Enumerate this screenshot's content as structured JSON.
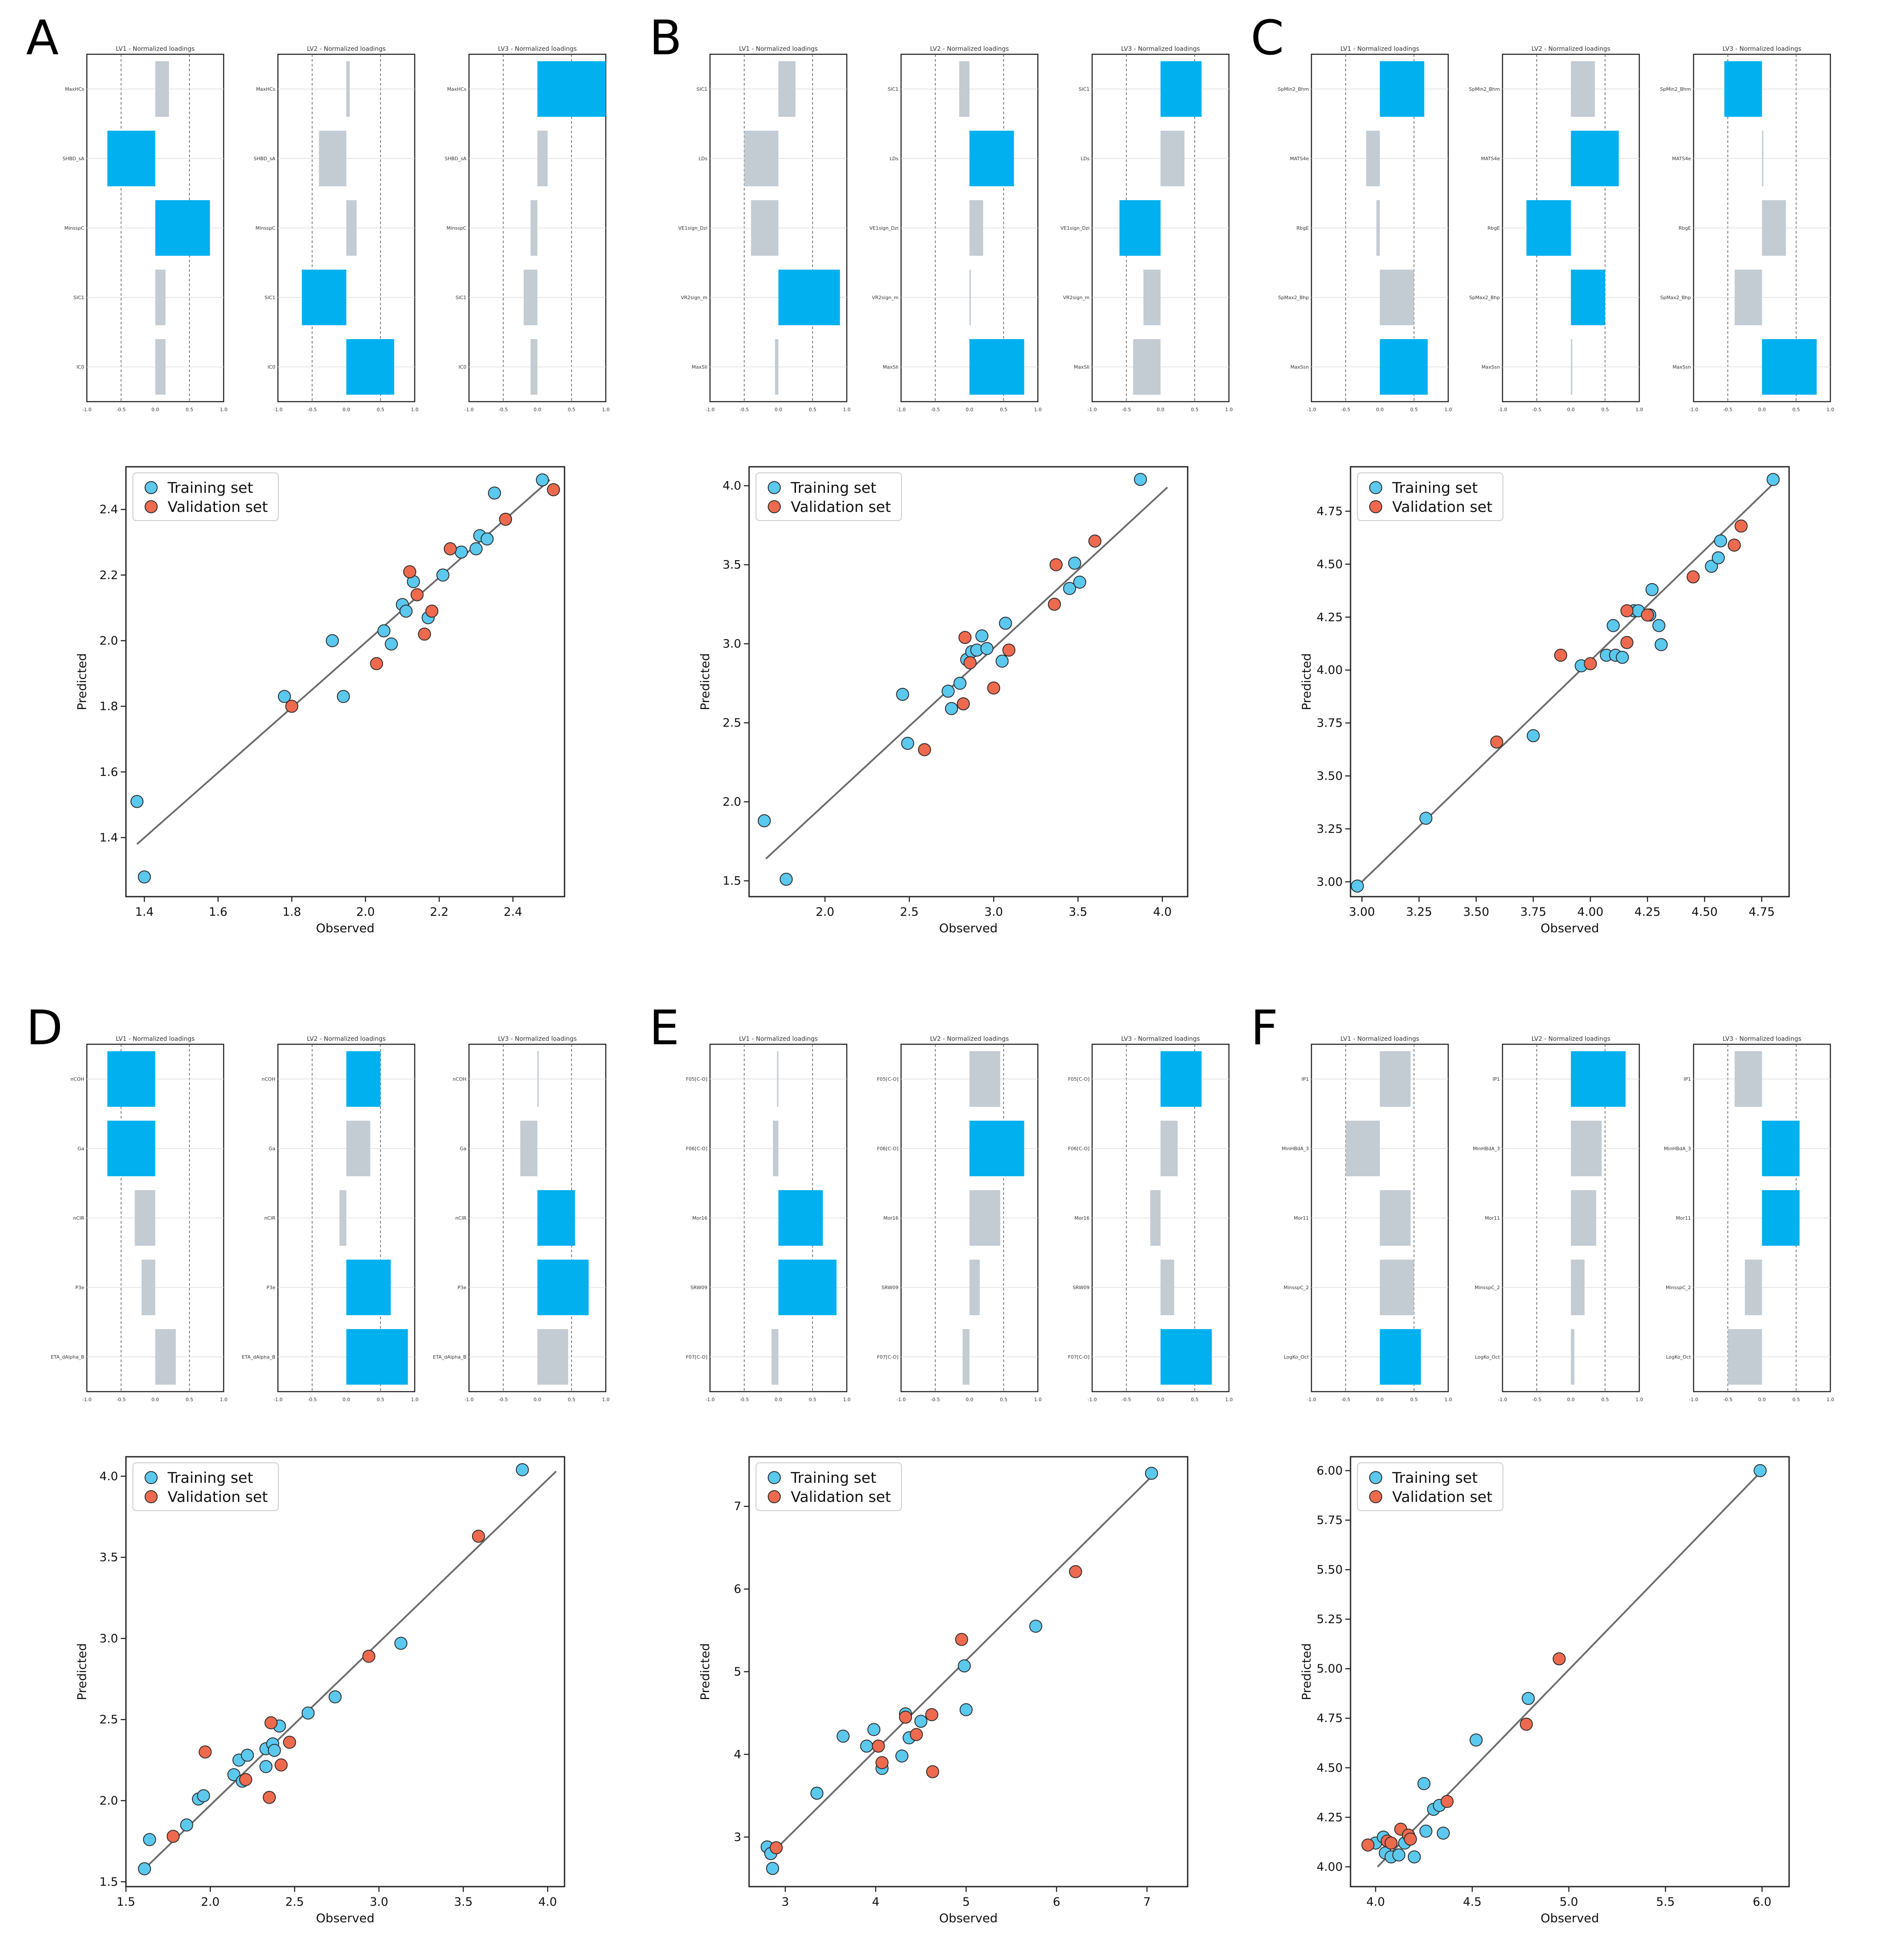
{
  "colors": {
    "training": "#5bc8ee",
    "validation": "#ee6a4e",
    "highlight_bar": "#00b0ef",
    "other_bar": "#c3cbd3",
    "fit_line": "#6b6b6b",
    "frame": "#222222",
    "grid": "#dddddd"
  },
  "chart_data": [
    {
      "panel": "A",
      "type": "scatter",
      "xlabel": "Observed",
      "ylabel": "Predicted",
      "xlim": [
        1.35,
        2.54
      ],
      "ylim": [
        1.22,
        2.53
      ],
      "xticks": [
        "1.4",
        "1.6",
        "1.8",
        "2.0",
        "2.2",
        "2.4"
      ],
      "yticks": [
        "1.4",
        "1.6",
        "1.8",
        "2.0",
        "2.2",
        "2.4"
      ],
      "legend": [
        "Training set",
        "Validation set"
      ],
      "fit_line": [
        [
          1.38,
          1.38
        ],
        [
          2.5,
          2.49
        ]
      ],
      "training": [
        [
          1.38,
          1.51
        ],
        [
          1.4,
          1.28
        ],
        [
          1.78,
          1.83
        ],
        [
          1.91,
          2.0
        ],
        [
          1.94,
          1.83
        ],
        [
          2.05,
          2.03
        ],
        [
          2.07,
          1.99
        ],
        [
          2.1,
          2.11
        ],
        [
          2.11,
          2.09
        ],
        [
          2.13,
          2.18
        ],
        [
          2.17,
          2.07
        ],
        [
          2.21,
          2.2
        ],
        [
          2.26,
          2.27
        ],
        [
          2.3,
          2.28
        ],
        [
          2.31,
          2.32
        ],
        [
          2.33,
          2.31
        ],
        [
          2.35,
          2.45
        ],
        [
          2.48,
          2.49
        ]
      ],
      "validation": [
        [
          1.8,
          1.8
        ],
        [
          2.03,
          1.93
        ],
        [
          2.12,
          2.21
        ],
        [
          2.14,
          2.14
        ],
        [
          2.16,
          2.02
        ],
        [
          2.18,
          2.09
        ],
        [
          2.23,
          2.28
        ],
        [
          2.38,
          2.37
        ],
        [
          2.51,
          2.46
        ]
      ],
      "loadings": {
        "titles": [
          "LV1 - Normalized loadings",
          "LV2 - Normalized loadings",
          "LV3 - Normalized loadings"
        ],
        "variables": [
          "MaxHCs",
          "SHBD_sA",
          "MinsspC",
          "SIC1",
          "IC0"
        ],
        "values": [
          [
            0.2,
            -0.7,
            0.8,
            0.15,
            0.15
          ],
          [
            0.05,
            -0.4,
            0.15,
            -0.65,
            0.7
          ],
          [
            1.0,
            0.15,
            -0.1,
            -0.2,
            -0.1
          ]
        ],
        "highlight": [
          [
            false,
            true,
            true,
            false,
            false
          ],
          [
            false,
            false,
            false,
            true,
            true
          ],
          [
            true,
            false,
            false,
            false,
            false
          ]
        ],
        "xticks": [
          "-1.0",
          "-0.5",
          "0.0",
          "0.5",
          "1.0"
        ]
      }
    },
    {
      "panel": "B",
      "type": "scatter",
      "xlabel": "Observed",
      "ylabel": "Predicted",
      "xlim": [
        1.55,
        4.15
      ],
      "ylim": [
        1.4,
        4.12
      ],
      "xticks": [
        "2.0",
        "2.5",
        "3.0",
        "3.5",
        "4.0"
      ],
      "yticks": [
        "1.5",
        "2.0",
        "2.5",
        "3.0",
        "3.5",
        "4.0"
      ],
      "legend": [
        "Training set",
        "Validation set"
      ],
      "fit_line": [
        [
          1.65,
          1.64
        ],
        [
          4.03,
          3.99
        ]
      ],
      "training": [
        [
          1.64,
          1.88
        ],
        [
          1.77,
          1.51
        ],
        [
          2.46,
          2.68
        ],
        [
          2.49,
          2.37
        ],
        [
          2.73,
          2.7
        ],
        [
          2.75,
          2.59
        ],
        [
          2.8,
          2.75
        ],
        [
          2.84,
          2.9
        ],
        [
          2.87,
          2.95
        ],
        [
          2.9,
          2.96
        ],
        [
          2.93,
          3.05
        ],
        [
          2.96,
          2.97
        ],
        [
          3.05,
          2.89
        ],
        [
          3.07,
          3.13
        ],
        [
          3.45,
          3.35
        ],
        [
          3.48,
          3.51
        ],
        [
          3.51,
          3.39
        ],
        [
          3.87,
          4.04
        ]
      ],
      "validation": [
        [
          2.59,
          2.33
        ],
        [
          2.82,
          2.62
        ],
        [
          2.83,
          3.04
        ],
        [
          2.86,
          2.88
        ],
        [
          3.0,
          2.72
        ],
        [
          3.09,
          2.96
        ],
        [
          3.36,
          3.25
        ],
        [
          3.37,
          3.5
        ],
        [
          3.6,
          3.65
        ]
      ],
      "loadings": {
        "titles": [
          "LV1 - Normalized loadings",
          "LV2 - Normalized loadings",
          "LV3 - Normalized loadings"
        ],
        "variables": [
          "SIC1",
          "LDs",
          "VE1sign_Dzi",
          "VR2sign_m",
          "MaxSIi"
        ],
        "values": [
          [
            0.25,
            -0.5,
            -0.4,
            0.9,
            -0.05
          ],
          [
            -0.15,
            0.65,
            0.2,
            0.02,
            0.8
          ],
          [
            0.6,
            0.35,
            -0.6,
            -0.25,
            -0.4
          ]
        ],
        "highlight": [
          [
            false,
            false,
            false,
            true,
            false
          ],
          [
            false,
            true,
            false,
            false,
            true
          ],
          [
            true,
            false,
            true,
            false,
            false
          ]
        ],
        "xticks": [
          "-1.0",
          "-0.5",
          "0.0",
          "0.5",
          "1.0"
        ]
      }
    },
    {
      "panel": "C",
      "type": "scatter",
      "xlabel": "Observed",
      "ylabel": "Predicted",
      "xlim": [
        2.95,
        4.87
      ],
      "ylim": [
        2.93,
        4.96
      ],
      "xticks": [
        "3.00",
        "3.25",
        "3.50",
        "3.75",
        "4.00",
        "4.25",
        "4.50",
        "4.75"
      ],
      "yticks": [
        "3.00",
        "3.25",
        "3.50",
        "3.75",
        "4.00",
        "4.25",
        "4.50",
        "4.75"
      ],
      "legend": [
        "Training set",
        "Validation set"
      ],
      "fit_line": [
        [
          2.99,
          2.99
        ],
        [
          4.82,
          4.9
        ]
      ],
      "training": [
        [
          2.98,
          2.98
        ],
        [
          3.28,
          3.3
        ],
        [
          3.75,
          3.69
        ],
        [
          3.96,
          4.02
        ],
        [
          4.07,
          4.07
        ],
        [
          4.1,
          4.21
        ],
        [
          4.11,
          4.07
        ],
        [
          4.14,
          4.06
        ],
        [
          4.19,
          4.28
        ],
        [
          4.21,
          4.28
        ],
        [
          4.26,
          4.26
        ],
        [
          4.27,
          4.38
        ],
        [
          4.3,
          4.21
        ],
        [
          4.31,
          4.12
        ],
        [
          4.53,
          4.49
        ],
        [
          4.56,
          4.53
        ],
        [
          4.57,
          4.61
        ],
        [
          4.8,
          4.9
        ]
      ],
      "validation": [
        [
          3.59,
          3.66
        ],
        [
          3.87,
          4.07
        ],
        [
          4.0,
          4.03
        ],
        [
          4.16,
          4.28
        ],
        [
          4.16,
          4.13
        ],
        [
          4.25,
          4.26
        ],
        [
          4.45,
          4.44
        ],
        [
          4.63,
          4.59
        ],
        [
          4.66,
          4.68
        ]
      ],
      "loadings": {
        "titles": [
          "LV1 - Normalized loadings",
          "LV2 - Normalized loadings",
          "LV3 - Normalized loadings"
        ],
        "variables": [
          "SpMin2_Bhm",
          "MATS4e",
          "RbgE",
          "SpMax2_Bhp",
          "MaxSsn"
        ],
        "values": [
          [
            0.65,
            -0.2,
            -0.05,
            0.5,
            0.7
          ],
          [
            0.35,
            0.7,
            -0.65,
            0.5,
            0.02
          ],
          [
            -0.55,
            0.02,
            0.35,
            -0.4,
            0.8
          ]
        ],
        "highlight": [
          [
            true,
            false,
            false,
            false,
            true
          ],
          [
            false,
            true,
            true,
            true,
            false
          ],
          [
            true,
            false,
            false,
            false,
            true
          ]
        ],
        "xticks": [
          "-1.0",
          "-0.5",
          "0.0",
          "0.5",
          "1.0"
        ]
      }
    },
    {
      "panel": "D",
      "type": "scatter",
      "xlabel": "Observed",
      "ylabel": "Predicted",
      "xlim": [
        1.5,
        4.1
      ],
      "ylim": [
        1.47,
        4.12
      ],
      "xticks": [
        "1.5",
        "2.0",
        "2.5",
        "3.0",
        "3.5",
        "4.0"
      ],
      "yticks": [
        "1.5",
        "2.0",
        "2.5",
        "3.0",
        "3.5",
        "4.0"
      ],
      "legend": [
        "Training set",
        "Validation set"
      ],
      "fit_line": [
        [
          1.63,
          1.6
        ],
        [
          4.05,
          4.03
        ]
      ],
      "training": [
        [
          1.61,
          1.58
        ],
        [
          1.64,
          1.76
        ],
        [
          1.86,
          1.85
        ],
        [
          1.93,
          2.01
        ],
        [
          1.96,
          2.03
        ],
        [
          2.14,
          2.16
        ],
        [
          2.17,
          2.25
        ],
        [
          2.19,
          2.12
        ],
        [
          2.22,
          2.28
        ],
        [
          2.33,
          2.32
        ],
        [
          2.33,
          2.21
        ],
        [
          2.37,
          2.35
        ],
        [
          2.38,
          2.31
        ],
        [
          2.41,
          2.46
        ],
        [
          2.58,
          2.54
        ],
        [
          2.74,
          2.64
        ],
        [
          3.13,
          2.97
        ],
        [
          3.85,
          4.04
        ]
      ],
      "validation": [
        [
          1.78,
          1.78
        ],
        [
          1.97,
          2.3
        ],
        [
          2.21,
          2.13
        ],
        [
          2.35,
          2.02
        ],
        [
          2.36,
          2.48
        ],
        [
          2.42,
          2.22
        ],
        [
          2.47,
          2.36
        ],
        [
          2.94,
          2.89
        ],
        [
          3.59,
          3.63
        ]
      ],
      "loadings": {
        "titles": [
          "LV1 - Normalized loadings",
          "LV2 - Normalized loadings",
          "LV3 - Normalized loadings"
        ],
        "variables": [
          "nCOH",
          "Ga",
          "nCIR",
          "P3e",
          "ETA_dAlpha_B"
        ],
        "values": [
          [
            -0.7,
            -0.7,
            -0.3,
            -0.2,
            0.3
          ],
          [
            0.5,
            0.35,
            -0.1,
            0.65,
            0.9
          ],
          [
            0.02,
            -0.25,
            0.55,
            0.75,
            0.45
          ]
        ],
        "highlight": [
          [
            true,
            true,
            false,
            false,
            false
          ],
          [
            true,
            false,
            false,
            true,
            true
          ],
          [
            false,
            false,
            true,
            true,
            false
          ]
        ],
        "xticks": [
          "-1.0",
          "-0.5",
          "0.0",
          "0.5",
          "1.0"
        ]
      }
    },
    {
      "panel": "E",
      "type": "scatter",
      "xlabel": "Observed",
      "ylabel": "Predicted",
      "xlim": [
        2.6,
        7.45
      ],
      "ylim": [
        2.4,
        7.6
      ],
      "xticks": [
        "3",
        "4",
        "5",
        "6",
        "7"
      ],
      "yticks": [
        "3",
        "4",
        "5",
        "6",
        "7"
      ],
      "legend": [
        "Training set",
        "Validation set"
      ],
      "fit_line": [
        [
          2.8,
          2.75
        ],
        [
          7.05,
          7.36
        ]
      ],
      "training": [
        [
          2.8,
          2.88
        ],
        [
          2.84,
          2.8
        ],
        [
          2.86,
          2.62
        ],
        [
          3.35,
          3.53
        ],
        [
          3.64,
          4.22
        ],
        [
          3.9,
          4.1
        ],
        [
          3.98,
          4.3
        ],
        [
          4.07,
          3.83
        ],
        [
          4.29,
          3.98
        ],
        [
          4.33,
          4.49
        ],
        [
          4.37,
          4.2
        ],
        [
          4.5,
          4.4
        ],
        [
          4.98,
          5.07
        ],
        [
          5.0,
          4.54
        ],
        [
          5.77,
          5.55
        ],
        [
          7.05,
          7.4
        ]
      ],
      "validation": [
        [
          2.9,
          2.87
        ],
        [
          4.03,
          4.1
        ],
        [
          4.07,
          3.9
        ],
        [
          4.33,
          4.45
        ],
        [
          4.45,
          4.24
        ],
        [
          4.62,
          4.48
        ],
        [
          4.63,
          3.79
        ],
        [
          4.95,
          5.39
        ],
        [
          6.21,
          6.21
        ]
      ],
      "loadings": {
        "titles": [
          "LV1 - Normalized loadings",
          "LV2 - Normalized loadings",
          "LV3 - Normalized loadings"
        ],
        "variables": [
          "F05[C-O]",
          "F06[C-O]",
          "Mor16",
          "SRW09",
          "F07[C-O]"
        ],
        "values": [
          [
            -0.02,
            -0.08,
            0.65,
            0.85,
            -0.1
          ],
          [
            0.45,
            0.8,
            0.45,
            0.15,
            -0.1
          ],
          [
            0.6,
            0.25,
            -0.15,
            0.2,
            0.75
          ]
        ],
        "highlight": [
          [
            false,
            false,
            true,
            true,
            false
          ],
          [
            false,
            true,
            false,
            false,
            false
          ],
          [
            true,
            false,
            false,
            false,
            true
          ]
        ],
        "xticks": [
          "-1.0",
          "-0.5",
          "0.0",
          "0.5",
          "1.0"
        ]
      }
    },
    {
      "panel": "F",
      "type": "scatter",
      "xlabel": "Observed",
      "ylabel": "Predicted",
      "xlim": [
        3.87,
        6.14
      ],
      "ylim": [
        3.9,
        6.07
      ],
      "xticks": [
        "4.0",
        "4.5",
        "5.0",
        "5.5",
        "6.0"
      ],
      "yticks": [
        "4.00",
        "4.25",
        "4.50",
        "4.75",
        "5.00",
        "5.25",
        "5.50",
        "5.75",
        "6.00"
      ],
      "legend": [
        "Training set",
        "Validation set"
      ],
      "fit_line": [
        [
          4.01,
          4.0
        ],
        [
          5.98,
          5.98
        ]
      ],
      "training": [
        [
          4.0,
          4.12
        ],
        [
          4.04,
          4.15
        ],
        [
          4.05,
          4.07
        ],
        [
          4.08,
          4.05
        ],
        [
          4.12,
          4.06
        ],
        [
          4.15,
          4.12
        ],
        [
          4.2,
          4.05
        ],
        [
          4.25,
          4.42
        ],
        [
          4.26,
          4.18
        ],
        [
          4.3,
          4.29
        ],
        [
          4.33,
          4.31
        ],
        [
          4.35,
          4.17
        ],
        [
          4.52,
          4.64
        ],
        [
          4.79,
          4.85
        ],
        [
          5.99,
          6.0
        ]
      ],
      "validation": [
        [
          3.96,
          4.11
        ],
        [
          4.06,
          4.13
        ],
        [
          4.08,
          4.12
        ],
        [
          4.13,
          4.19
        ],
        [
          4.17,
          4.16
        ],
        [
          4.18,
          4.14
        ],
        [
          4.37,
          4.33
        ],
        [
          4.78,
          4.72
        ],
        [
          4.95,
          5.05
        ]
      ],
      "loadings": {
        "titles": [
          "LV1 - Normalized loadings",
          "LV2 - Normalized loadings",
          "LV3 - Normalized loadings"
        ],
        "variables": [
          "IP1",
          "MinHBdA_3",
          "Mor11",
          "MinsspC_2",
          "LogKo_Oct"
        ],
        "values": [
          [
            0.45,
            -0.5,
            0.45,
            0.5,
            0.6
          ],
          [
            0.8,
            0.45,
            0.37,
            0.2,
            0.05
          ],
          [
            -0.4,
            0.55,
            0.55,
            -0.25,
            -0.5
          ]
        ],
        "highlight": [
          [
            false,
            false,
            false,
            false,
            true
          ],
          [
            true,
            false,
            false,
            false,
            false
          ],
          [
            false,
            true,
            true,
            false,
            false
          ]
        ],
        "xticks": [
          "-1.0",
          "-0.5",
          "0.0",
          "0.5",
          "1.0"
        ]
      }
    }
  ]
}
